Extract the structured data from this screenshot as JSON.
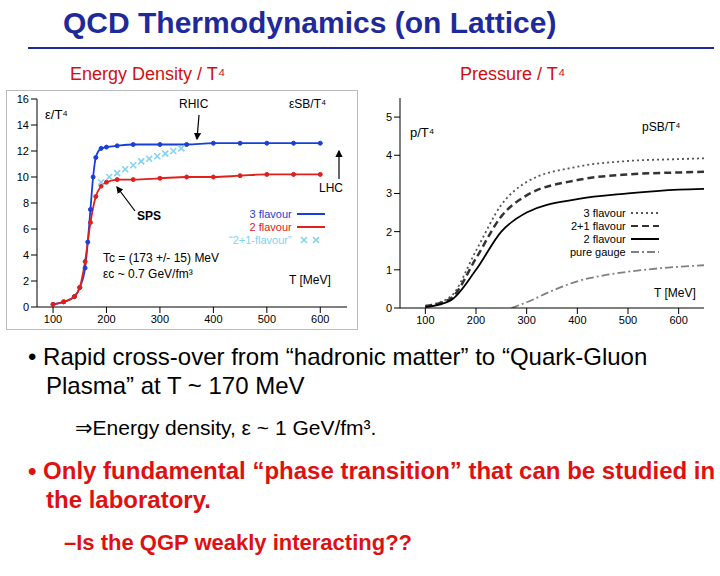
{
  "slide": {
    "title": "QCD Thermodynamics (on Lattice)",
    "bullets": [
      "• Rapid cross-over from “hadronic matter” to “Quark-Gluon Plasma” at T ~ 170 MeV",
      "• Only fundamental “phase transition” that can be studied in the laboratory."
    ],
    "sub_bullets": [
      "⇒Energy density, ε ~ 1 GeV/fm³.",
      "–Is the QGP weakly interacting??"
    ]
  },
  "chart_data": [
    {
      "type": "line",
      "title": "Energy Density / T⁴",
      "x_label": "T [MeV]",
      "y_label": "ε/T⁴",
      "annotations": [
        "RHIC",
        "εSB/T⁴",
        "LHC",
        "SPS",
        "Tc = (173 +/- 15) MeV",
        "εc ~ 0.7 GeV/fm³"
      ],
      "xlim": [
        70,
        650
      ],
      "xticks": [
        100,
        200,
        300,
        400,
        500,
        600
      ],
      "ylim": [
        0,
        16
      ],
      "yticks": [
        0,
        2,
        4,
        6,
        8,
        10,
        12,
        14,
        16
      ],
      "series": [
        {
          "name": "3 flavour",
          "color": "#1a3fd6",
          "type": "line",
          "marker": "circle",
          "line_style": "solid",
          "x": [
            100,
            120,
            140,
            150,
            160,
            165,
            170,
            175,
            180,
            190,
            200,
            220,
            250,
            300,
            350,
            400,
            450,
            500,
            550,
            600
          ],
          "values": [
            0.2,
            0.4,
            0.8,
            1.5,
            3,
            5,
            7.5,
            10,
            11.5,
            12.2,
            12.3,
            12.4,
            12.5,
            12.5,
            12.5,
            12.6,
            12.6,
            12.6,
            12.6,
            12.6
          ]
        },
        {
          "name": "2 flavour",
          "color": "#e0201b",
          "type": "line",
          "marker": "circle",
          "line_style": "solid",
          "x": [
            100,
            120,
            140,
            150,
            160,
            170,
            180,
            190,
            200,
            220,
            250,
            300,
            350,
            400,
            450,
            500,
            550,
            600
          ],
          "values": [
            0.2,
            0.4,
            0.8,
            1.5,
            3.5,
            6.5,
            8.5,
            9.3,
            9.6,
            9.8,
            9.8,
            9.9,
            10,
            10,
            10.1,
            10.2,
            10.2,
            10.2
          ]
        },
        {
          "name": "“2+1-flavour”",
          "color": "#7fd3f0",
          "type": "scatter",
          "marker": "cross",
          "line_style": "none",
          "x": [
            190,
            205,
            220,
            235,
            250,
            265,
            280,
            295,
            310,
            325,
            340
          ],
          "values": [
            9.6,
            10,
            10.3,
            10.6,
            10.9,
            11.2,
            11.4,
            11.6,
            11.8,
            12,
            12.2
          ]
        }
      ]
    },
    {
      "type": "line",
      "title": "Pressure / T⁴",
      "x_label": "T [MeV]",
      "y_label": "p/T⁴",
      "annotations": [
        "pSB/T⁴"
      ],
      "xlim": [
        50,
        650
      ],
      "xticks": [
        100,
        200,
        300,
        400,
        500,
        600
      ],
      "ylim": [
        0,
        5.5
      ],
      "yticks": [
        0,
        1,
        2,
        3,
        4,
        5
      ],
      "series": [
        {
          "name": "3 flavour",
          "color": "#555555",
          "type": "line",
          "marker": "none",
          "line_style": "dotted",
          "x": [
            100,
            150,
            200,
            250,
            300,
            400,
            500,
            600,
            650
          ],
          "values": [
            0.05,
            0.3,
            1.5,
            2.7,
            3.3,
            3.7,
            3.85,
            3.9,
            3.92
          ]
        },
        {
          "name": "2+1 flavour",
          "color": "#333333",
          "type": "line",
          "marker": "none",
          "line_style": "dashed",
          "x": [
            100,
            150,
            200,
            250,
            300,
            400,
            500,
            600,
            650
          ],
          "values": [
            0.05,
            0.25,
            1.3,
            2.4,
            2.95,
            3.35,
            3.5,
            3.55,
            3.57
          ]
        },
        {
          "name": "2 flavour",
          "color": "#000000",
          "type": "line",
          "marker": "none",
          "line_style": "solid",
          "x": [
            100,
            150,
            200,
            250,
            300,
            400,
            500,
            600,
            650
          ],
          "values": [
            0.02,
            0.2,
            1,
            2,
            2.5,
            2.85,
            3,
            3.1,
            3.12
          ]
        },
        {
          "name": "pure gauge",
          "color": "#808080",
          "type": "line",
          "marker": "none",
          "line_style": "dashdot",
          "x": [
            270,
            300,
            350,
            400,
            450,
            500,
            600,
            650
          ],
          "values": [
            0,
            0.15,
            0.45,
            0.7,
            0.85,
            0.95,
            1.08,
            1.12
          ]
        }
      ]
    }
  ]
}
